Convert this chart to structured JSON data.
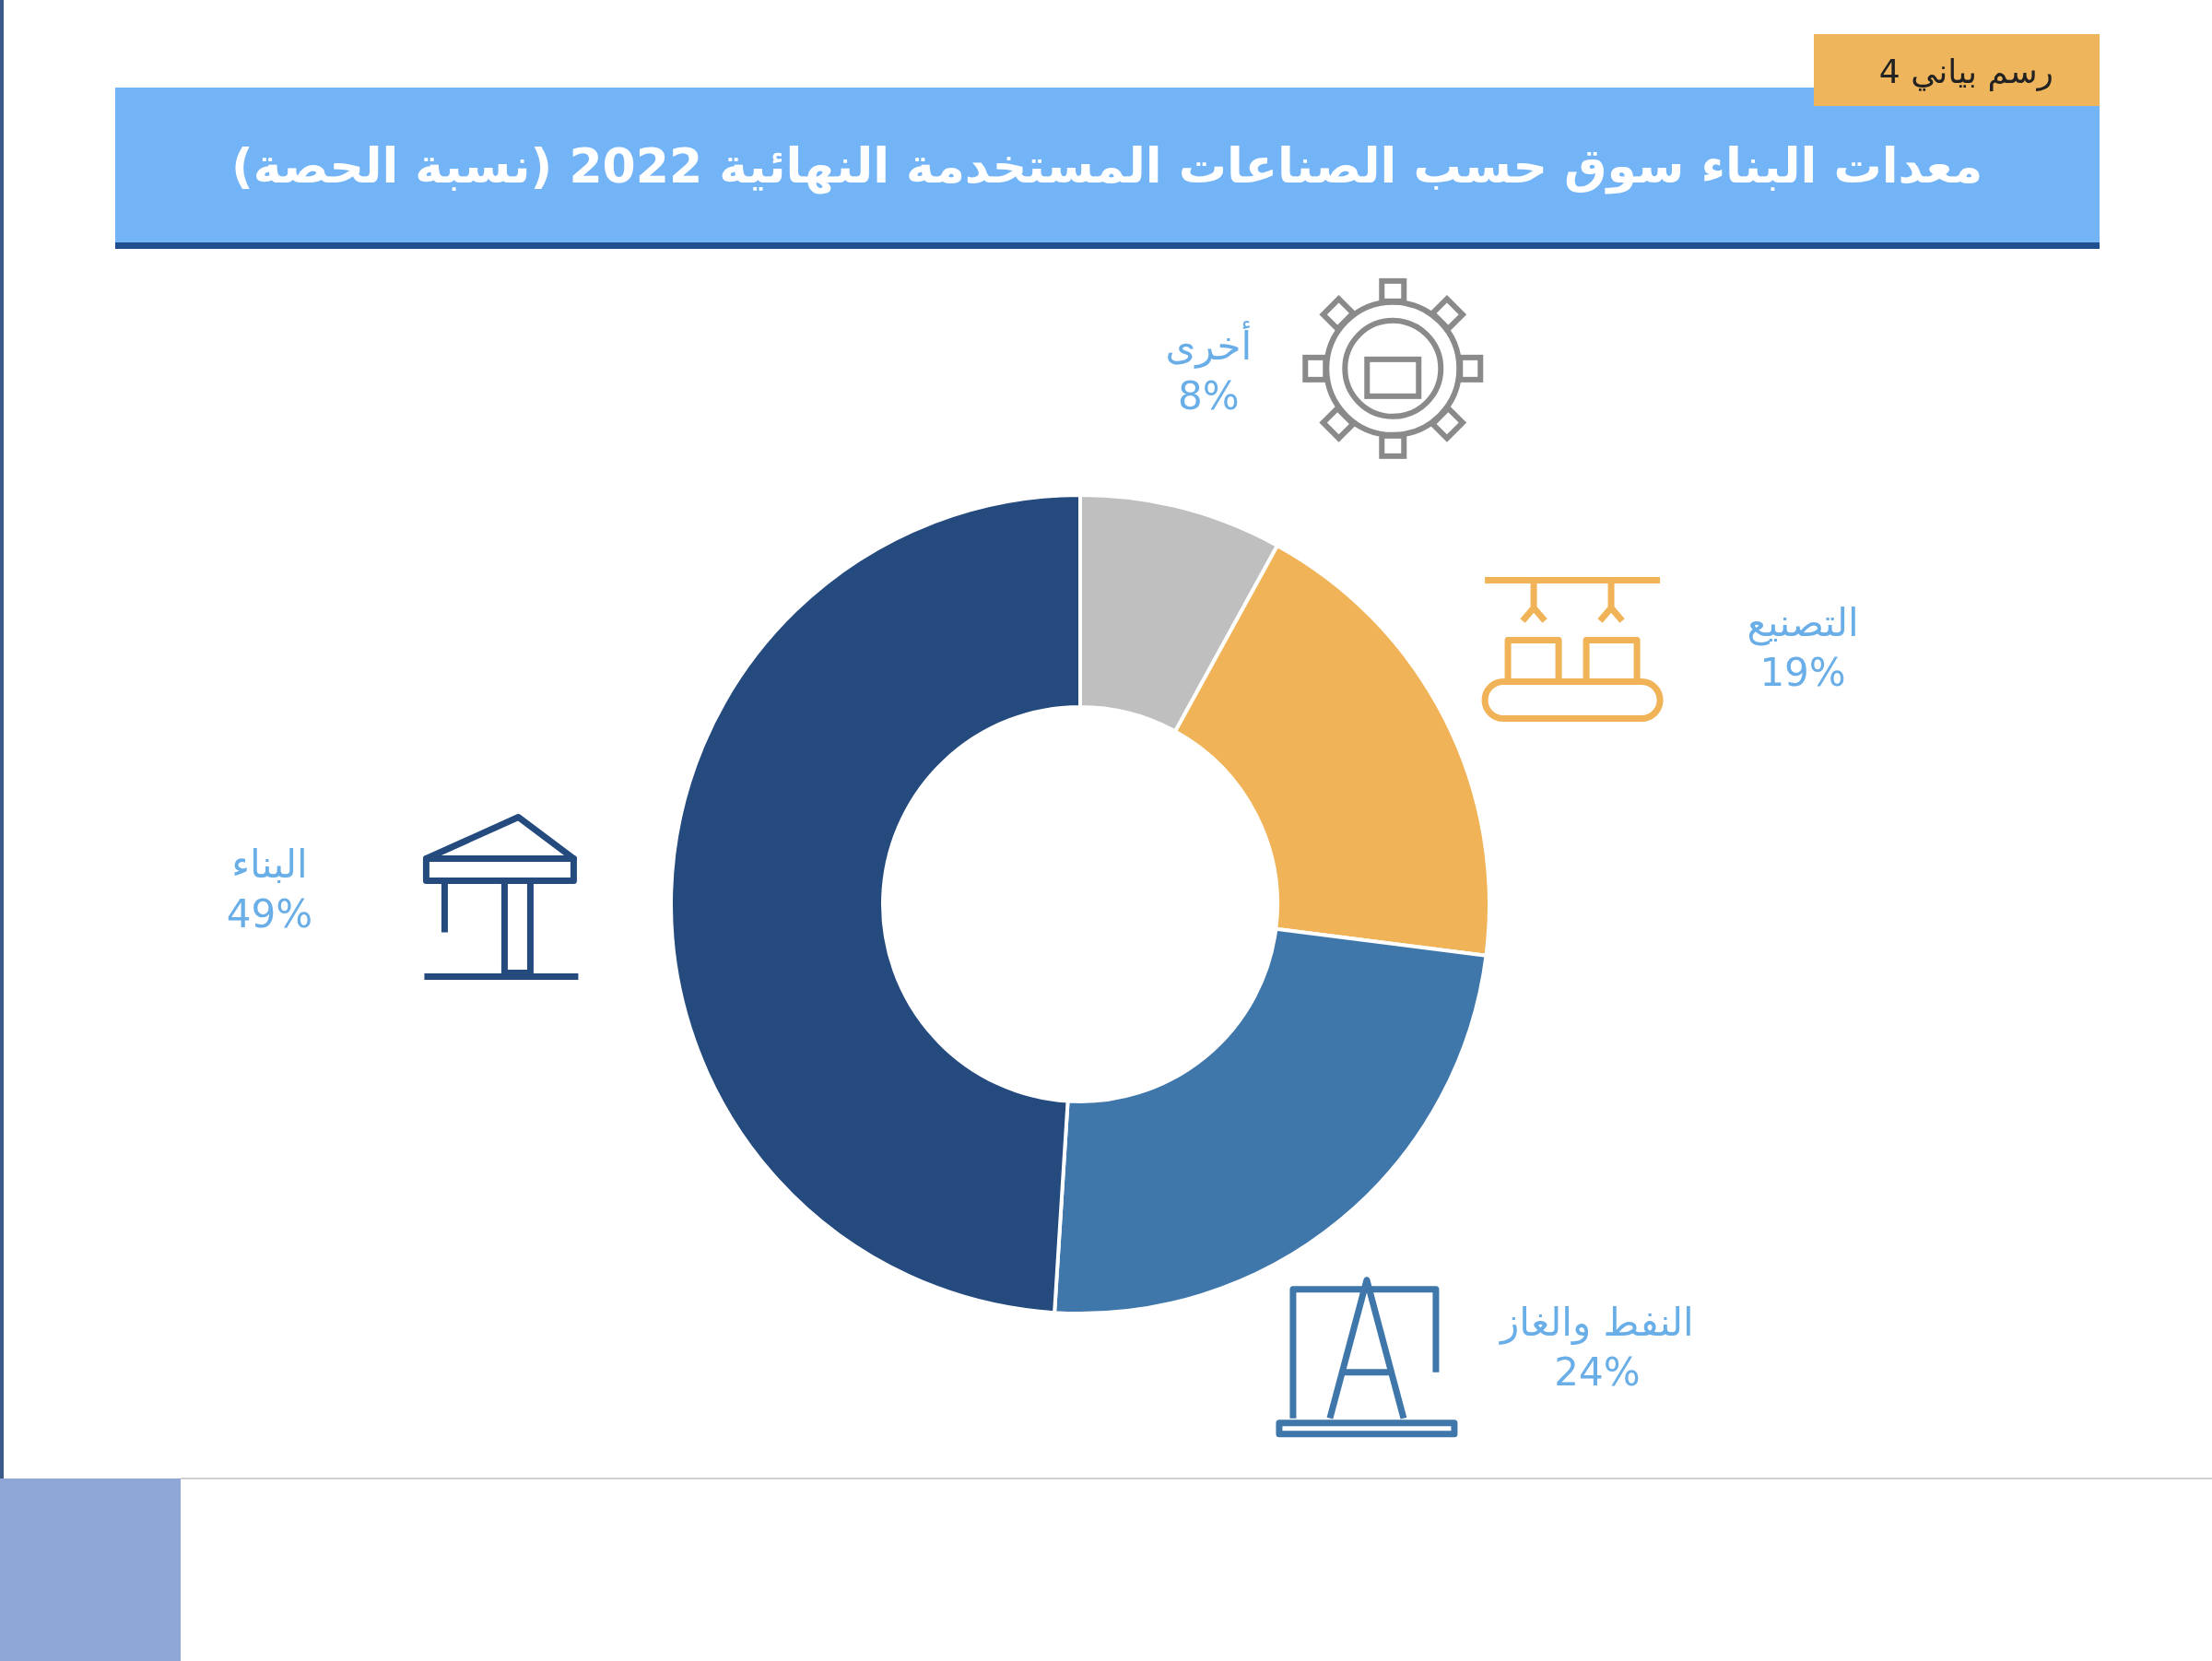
{
  "chart_data": {
    "type": "donut",
    "title": "معدات البناء سوق حسب الصناعات المستخدمة النهائية 2022 (نسبة الحصة)",
    "categories": [
      "أخرى",
      "التصنيع",
      "النفط والغاز",
      "البناء"
    ],
    "values": [
      8,
      19,
      24,
      49
    ],
    "colors": [
      "#bfbfbf",
      "#f0b357",
      "#4077aa",
      "#244a7e"
    ],
    "value_labels": [
      "8%",
      "19%",
      "24%",
      "49%"
    ],
    "annotations": [
      "رسم بياني 4"
    ]
  }
}
